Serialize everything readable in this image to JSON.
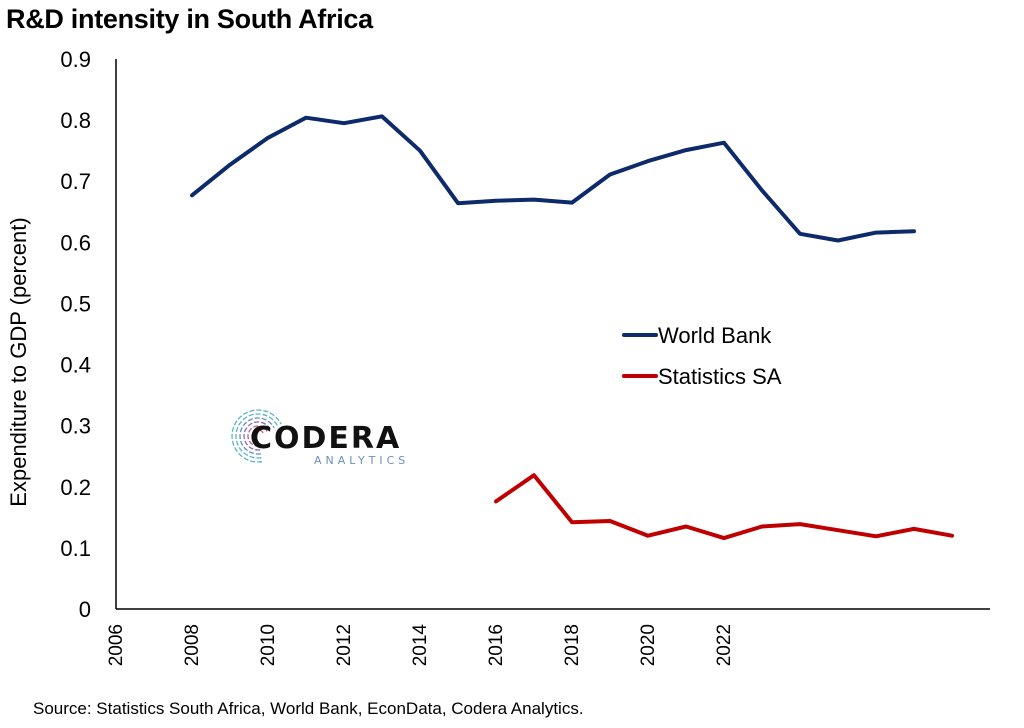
{
  "title": "R&D intensity in South Africa",
  "source": "Source: Statistics South Africa, World Bank, EconData, Codera Analytics.",
  "logo": {
    "main": "CODERA",
    "sub": "ANALYTICS"
  },
  "chart_data": {
    "type": "line",
    "title": "R&D intensity in South Africa",
    "xlabel": "",
    "ylabel": "Expenditure to GDP (percent)",
    "ylim": [
      0,
      0.9
    ],
    "yticks": [
      "0",
      "0.1",
      "0.2",
      "0.3",
      "0.4",
      "0.5",
      "0.6",
      "0.7",
      "0.8",
      "0.9"
    ],
    "xlim": [
      2006,
      2029
    ],
    "xticks": [
      "2006",
      "2008",
      "2010",
      "2012",
      "2014",
      "2016",
      "2018",
      "2020",
      "2022"
    ],
    "legend_position": "center-right",
    "grid": false,
    "series": [
      {
        "name": "World Bank",
        "color": "#0d2a6b",
        "x": [
          2008,
          2009,
          2010,
          2011,
          2012,
          2013,
          2014,
          2015,
          2016,
          2017,
          2018,
          2019,
          2020,
          2021,
          2022,
          2023,
          2024,
          2025,
          2026,
          2027
        ],
        "values": [
          0.677,
          0.727,
          0.771,
          0.804,
          0.795,
          0.806,
          0.75,
          0.664,
          0.668,
          0.67,
          0.665,
          0.711,
          0.733,
          0.751,
          0.763,
          0.685,
          0.614,
          0.603,
          0.616,
          0.618
        ]
      },
      {
        "name": "Statistics SA",
        "color": "#c00000",
        "x": [
          2016,
          2017,
          2018,
          2019,
          2020,
          2021,
          2022,
          2023,
          2024,
          2025,
          2026,
          2027,
          2028
        ],
        "values": [
          0.176,
          0.219,
          0.142,
          0.144,
          0.12,
          0.135,
          0.116,
          0.135,
          0.139,
          0.129,
          0.119,
          0.131,
          0.12
        ]
      }
    ]
  }
}
